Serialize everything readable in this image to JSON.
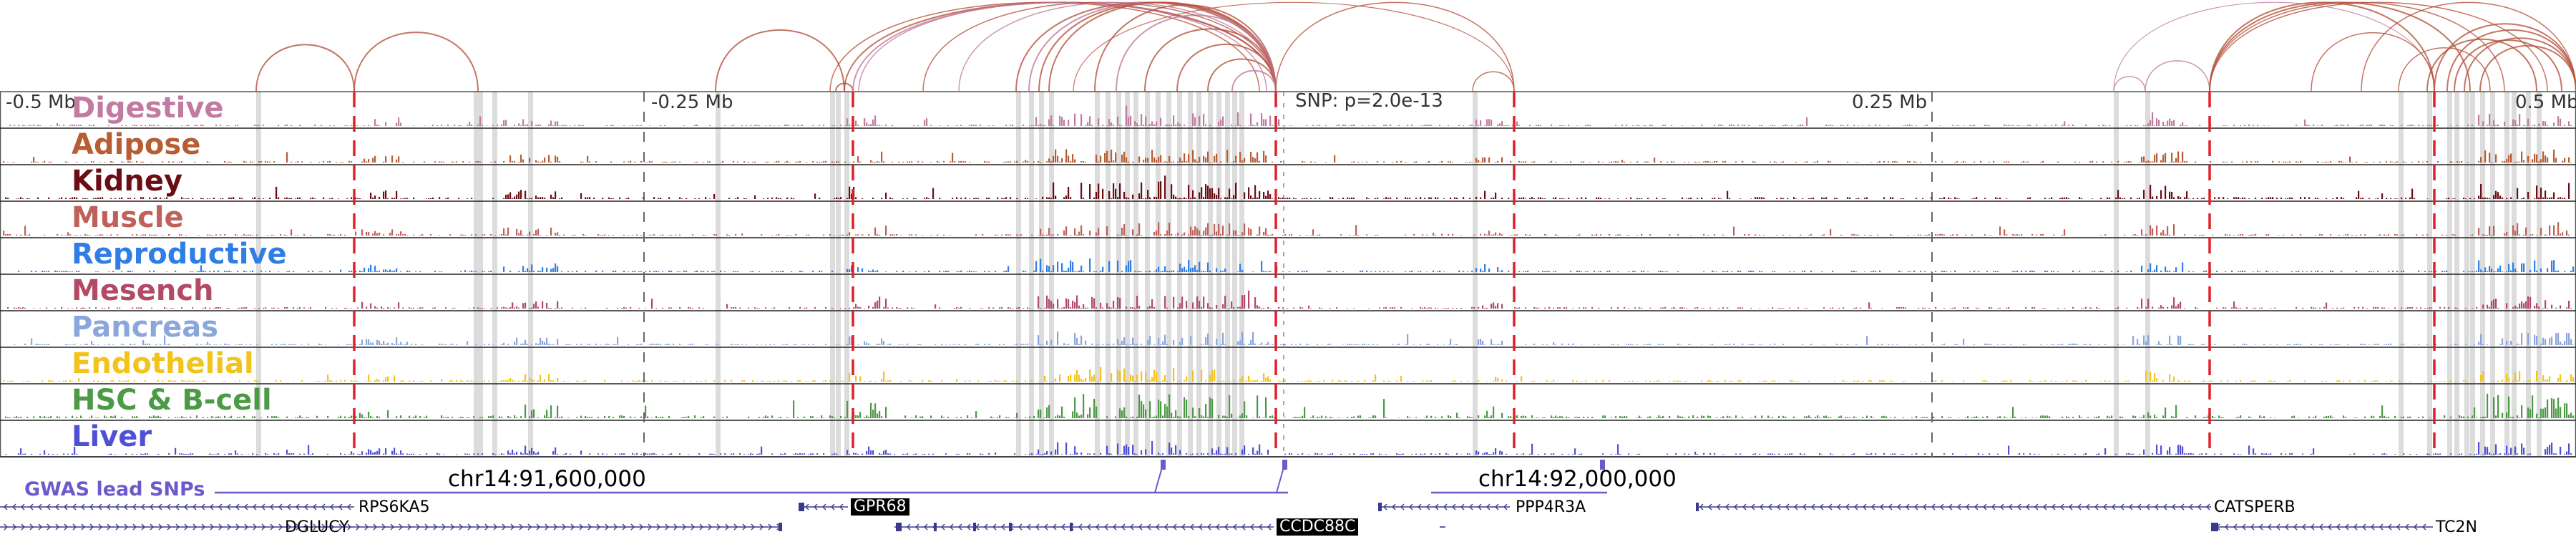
{
  "axis": {
    "left_label": "-0.5 Mb",
    "mid_left_label": "-0.25 Mb",
    "snp_label": "SNP: p=2.0e-13",
    "mid_right_label": "0.25 Mb",
    "right_label": "0.5 Mb"
  },
  "coordinates": {
    "left": "chr14:91,600,000",
    "right": "chr14:92,000,000"
  },
  "gwas_label": "GWAS lead SNPs",
  "tracks": [
    {
      "name": "Digestive",
      "color": "#c27ba0"
    },
    {
      "name": "Adipose",
      "color": "#b85c33"
    },
    {
      "name": "Kidney",
      "color": "#6b0d14"
    },
    {
      "name": "Muscle",
      "color": "#c0605a"
    },
    {
      "name": "Reproductive",
      "color": "#2e7ee6"
    },
    {
      "name": "Mesench",
      "color": "#b24a66"
    },
    {
      "name": "Pancreas",
      "color": "#8aa6dc"
    },
    {
      "name": "Endothelial",
      "color": "#f2c31a"
    },
    {
      "name": "HSC & B-cell",
      "color": "#4c9a46"
    },
    {
      "name": "Liver",
      "color": "#5050d6"
    }
  ],
  "genes": [
    {
      "name": "RPS6KA5",
      "highlight": false
    },
    {
      "name": "GPR68",
      "highlight": true
    },
    {
      "name": "PPP4R3A",
      "highlight": false
    },
    {
      "name": "CATSPERB",
      "highlight": false
    },
    {
      "name": "DGLUCY",
      "highlight": false
    },
    {
      "name": "CCDC88C",
      "highlight": true
    },
    {
      "name": "TC2N",
      "highlight": false
    }
  ],
  "colors": {
    "loop": "#b5533c",
    "loop_alt": "#c27ba0",
    "highlight_band": "#dcdcdc",
    "red_marker": "#e0202a",
    "gwas": "#6a5acd"
  }
}
